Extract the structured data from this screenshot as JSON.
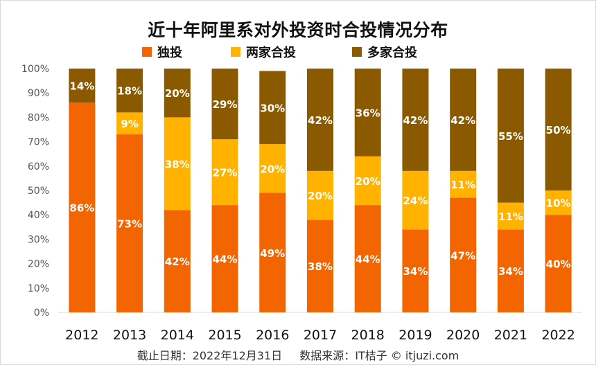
{
  "title": "近十年阿里系对外投资时合投情况分布",
  "footer": {
    "date": "截止日期：2022年12月31日",
    "source": "数据来源：IT桔子 © itjuzi.com"
  },
  "colors": {
    "solo": "#F26500",
    "two": "#FFB300",
    "multi": "#8B5A00"
  },
  "chart_data": {
    "type": "bar",
    "stacked": true,
    "categories": [
      "2012",
      "2013",
      "2014",
      "2015",
      "2016",
      "2017",
      "2018",
      "2019",
      "2020",
      "2021",
      "2022"
    ],
    "series": [
      {
        "name": "独投",
        "key": "solo",
        "values": [
          86,
          73,
          42,
          44,
          49,
          38,
          44,
          34,
          47,
          34,
          40
        ]
      },
      {
        "name": "两家合投",
        "key": "two",
        "values": [
          0,
          9,
          38,
          27,
          20,
          20,
          20,
          24,
          11,
          11,
          10
        ]
      },
      {
        "name": "多家合投",
        "key": "multi",
        "values": [
          14,
          18,
          20,
          29,
          30,
          42,
          36,
          42,
          42,
          55,
          50
        ]
      }
    ],
    "y_ticks": [
      "0%",
      "10%",
      "20%",
      "30%",
      "40%",
      "50%",
      "60%",
      "70%",
      "80%",
      "90%",
      "100%"
    ],
    "ylim": [
      0,
      100
    ],
    "legend_position": "top-center",
    "grid": false
  }
}
